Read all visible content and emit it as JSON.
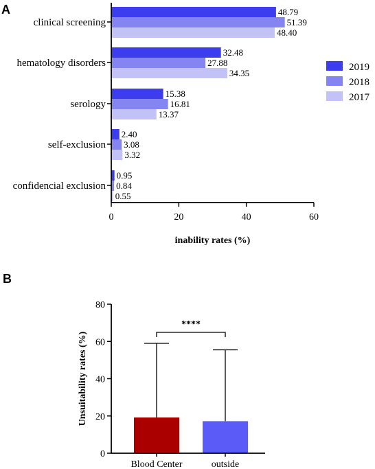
{
  "chart_data": [
    {
      "panel": "A",
      "type": "bar",
      "orientation": "horizontal",
      "categories": [
        "clinical screening",
        "hematology disorders",
        "serology",
        "self-exclusion",
        "confidencial exclusion"
      ],
      "series": [
        {
          "name": "2019",
          "color": "#3d3df0",
          "values": [
            48.79,
            32.48,
            15.38,
            2.4,
            0.95
          ],
          "labels": [
            "48.79",
            "32.48",
            "15.38",
            "2.40",
            "0.95"
          ]
        },
        {
          "name": "2018",
          "color": "#8585f2",
          "values": [
            51.39,
            27.88,
            16.81,
            3.08,
            0.84
          ],
          "labels": [
            "51.39",
            "27.88",
            "16.81",
            "3.08",
            "0.84"
          ]
        },
        {
          "name": "2017",
          "color": "#c2c2f7",
          "values": [
            48.4,
            34.35,
            13.37,
            3.32,
            0.55
          ],
          "labels": [
            "48.40",
            "34.35",
            "13.37",
            "3.32",
            "0.55"
          ]
        }
      ],
      "xlabel": "inability rates (%)",
      "xlim": [
        0,
        60
      ],
      "xticks": [
        0,
        20,
        40,
        60
      ],
      "legend_position": "right"
    },
    {
      "panel": "B",
      "type": "bar",
      "categories": [
        "Blood Center",
        "outside"
      ],
      "values": [
        19.2,
        17.2
      ],
      "error_upper": [
        59,
        55.5
      ],
      "colors": [
        "#aa0000",
        "#5b5bf7"
      ],
      "ylabel": "Unsuitability rates (%)",
      "ylim": [
        0,
        80
      ],
      "yticks": [
        0,
        20,
        40,
        60,
        80
      ],
      "significance": "****"
    }
  ]
}
